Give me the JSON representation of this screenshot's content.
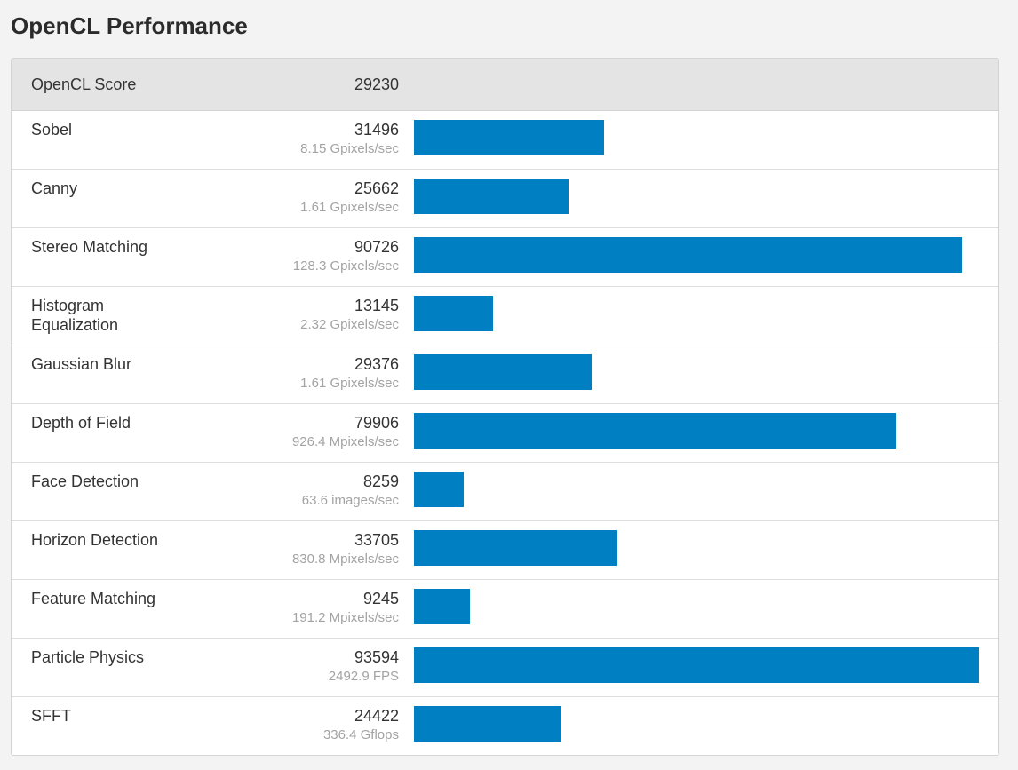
{
  "page": {
    "title": "OpenCL Performance"
  },
  "colors": {
    "bar": "#0080c3",
    "header_bg": "#e4e4e4"
  },
  "chart_data": {
    "type": "bar",
    "orientation": "horizontal",
    "overall": {
      "label": "OpenCL Score",
      "value": 29230
    },
    "max_value": 93594,
    "categories": [
      "Sobel",
      "Canny",
      "Stereo Matching",
      "Histogram Equalization",
      "Gaussian Blur",
      "Depth of Field",
      "Face Detection",
      "Horizon Detection",
      "Feature Matching",
      "Particle Physics",
      "SFFT"
    ],
    "values": [
      31496,
      25662,
      90726,
      13145,
      29376,
      79906,
      8259,
      33705,
      9245,
      93594,
      24422
    ],
    "rows": [
      {
        "name": "Sobel",
        "score": 31496,
        "score_text": "31496",
        "rate": "8.15 Gpixels/sec"
      },
      {
        "name": "Canny",
        "score": 25662,
        "score_text": "25662",
        "rate": "1.61 Gpixels/sec"
      },
      {
        "name": "Stereo Matching",
        "score": 90726,
        "score_text": "90726",
        "rate": "128.3 Gpixels/sec"
      },
      {
        "name": "Histogram Equalization",
        "score": 13145,
        "score_text": "13145",
        "rate": "2.32 Gpixels/sec"
      },
      {
        "name": "Gaussian Blur",
        "score": 29376,
        "score_text": "29376",
        "rate": "1.61 Gpixels/sec"
      },
      {
        "name": "Depth of Field",
        "score": 79906,
        "score_text": "79906",
        "rate": "926.4 Mpixels/sec"
      },
      {
        "name": "Face Detection",
        "score": 8259,
        "score_text": "8259",
        "rate": "63.6 images/sec"
      },
      {
        "name": "Horizon Detection",
        "score": 33705,
        "score_text": "33705",
        "rate": "830.8 Mpixels/sec"
      },
      {
        "name": "Feature Matching",
        "score": 9245,
        "score_text": "9245",
        "rate": "191.2 Mpixels/sec"
      },
      {
        "name": "Particle Physics",
        "score": 93594,
        "score_text": "93594",
        "rate": "2492.9 FPS"
      },
      {
        "name": "SFFT",
        "score": 24422,
        "score_text": "24422",
        "rate": "336.4 Gflops"
      }
    ]
  }
}
